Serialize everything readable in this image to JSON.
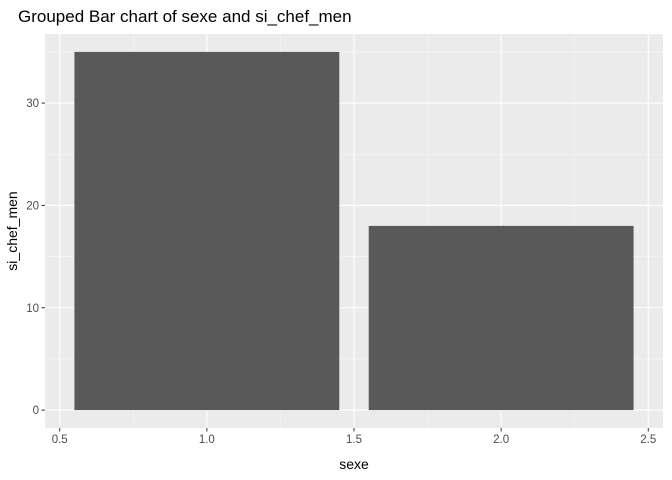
{
  "chart_data": {
    "type": "bar",
    "title": "Grouped Bar chart of sexe and si_chef_men",
    "xlabel": "sexe",
    "ylabel": "si_chef_men",
    "x": [
      1,
      2
    ],
    "values": [
      35,
      18
    ],
    "bar_width": 0.9,
    "xlim": [
      0.45,
      2.55
    ],
    "ylim": [
      -1.75,
      36.75
    ],
    "x_ticks": [
      0.5,
      1.0,
      1.5,
      2.0,
      2.5
    ],
    "x_tick_labels": [
      "0.5",
      "1.0",
      "1.5",
      "2.0",
      "2.5"
    ],
    "y_ticks": [
      0,
      10,
      20,
      30
    ],
    "y_tick_labels": [
      "0",
      "10",
      "20",
      "30"
    ],
    "grid": true,
    "legend": "none",
    "colors": {
      "bar": "#595959",
      "panel_background": "#ebebeb",
      "grid_major": "#ffffff",
      "grid_minor": "#f7f7f7",
      "tick_label": "#4d4d4d",
      "tick_mark": "#333333"
    }
  }
}
